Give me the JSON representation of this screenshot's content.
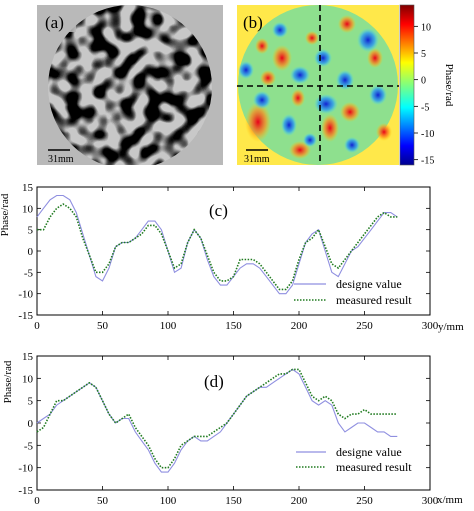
{
  "panels": {
    "a": {
      "label": "(a)",
      "scale_label": "31mm"
    },
    "b": {
      "label": "(b)",
      "scale_label": "31mm",
      "colorbar": {
        "title": "Phase/rad",
        "ticks": [
          10,
          5,
          0,
          -5,
          -10,
          -15
        ],
        "range": [
          -16,
          14
        ]
      }
    }
  },
  "chart_data": [
    {
      "panel": "(c)",
      "type": "line",
      "ylabel": "Phase/rad",
      "xlabel": "y/mm",
      "xlim": [
        0,
        300
      ],
      "ylim": [
        -15,
        15
      ],
      "xticks": [
        0,
        50,
        100,
        150,
        200,
        250,
        300
      ],
      "yticks": [
        15,
        10,
        5,
        0,
        -5,
        -10,
        -15
      ],
      "legend": "bottom-right",
      "series": [
        {
          "name": "designe value",
          "color": "#8f8fe0",
          "style": "solid",
          "x": [
            0,
            5,
            10,
            15,
            20,
            25,
            30,
            35,
            40,
            45,
            50,
            55,
            60,
            65,
            70,
            75,
            80,
            85,
            90,
            95,
            100,
            105,
            110,
            115,
            120,
            125,
            130,
            135,
            140,
            145,
            150,
            155,
            160,
            165,
            170,
            175,
            180,
            185,
            190,
            195,
            200,
            205,
            210,
            215,
            220,
            225,
            230,
            235,
            240,
            245,
            250,
            255,
            260,
            265,
            270,
            275
          ],
          "y": [
            8,
            10,
            12,
            13,
            13,
            12,
            9,
            4,
            -1,
            -6,
            -7,
            -4,
            1,
            2,
            2,
            3,
            5,
            7,
            7,
            5,
            0,
            -5,
            -4,
            2,
            5,
            3,
            -2,
            -6,
            -8,
            -8,
            -6,
            -4,
            -3,
            -3,
            -4,
            -6,
            -8,
            -10,
            -10,
            -8,
            -3,
            2,
            4,
            5,
            0,
            -5,
            -6,
            -3,
            0,
            1,
            3,
            5,
            7,
            9,
            9,
            8
          ]
        },
        {
          "name": "measured result",
          "color": "#1f7a1f",
          "style": "dotted",
          "x": [
            0,
            5,
            10,
            15,
            20,
            25,
            30,
            35,
            40,
            45,
            50,
            55,
            60,
            65,
            70,
            75,
            80,
            85,
            90,
            95,
            100,
            105,
            110,
            115,
            120,
            125,
            130,
            135,
            140,
            145,
            150,
            155,
            160,
            165,
            170,
            175,
            180,
            185,
            190,
            195,
            200,
            205,
            210,
            215,
            220,
            225,
            230,
            235,
            240,
            245,
            250,
            255,
            260,
            265,
            270,
            275
          ],
          "y": [
            5,
            5,
            8,
            10,
            11,
            10,
            8,
            3,
            -1,
            -5,
            -5,
            -3,
            1,
            2,
            2,
            3,
            4,
            6,
            6,
            4,
            0,
            -4,
            -3,
            2,
            5,
            3,
            -1,
            -5,
            -7,
            -7,
            -6,
            -2,
            -2,
            -2,
            -3,
            -5,
            -7,
            -9,
            -9,
            -7,
            -2,
            2,
            3,
            5,
            1,
            -3,
            -4,
            -2,
            0,
            2,
            4,
            6,
            8,
            9,
            8,
            8
          ]
        }
      ]
    },
    {
      "panel": "(d)",
      "type": "line",
      "ylabel": "Phase/rad",
      "xlabel": "x/mm",
      "xlim": [
        0,
        300
      ],
      "ylim": [
        -15,
        15
      ],
      "xticks": [
        0,
        50,
        100,
        150,
        200,
        250,
        300
      ],
      "yticks": [
        15,
        10,
        5,
        0,
        -5,
        -10,
        -15
      ],
      "legend": "bottom-right",
      "series": [
        {
          "name": "designe value",
          "color": "#8f8fe0",
          "style": "solid",
          "x": [
            0,
            5,
            10,
            15,
            20,
            25,
            30,
            35,
            40,
            45,
            50,
            55,
            60,
            65,
            70,
            75,
            80,
            85,
            90,
            95,
            100,
            105,
            110,
            115,
            120,
            125,
            130,
            135,
            140,
            145,
            150,
            155,
            160,
            165,
            170,
            175,
            180,
            185,
            190,
            195,
            200,
            205,
            210,
            215,
            220,
            225,
            230,
            235,
            240,
            245,
            250,
            255,
            260,
            265,
            270,
            275
          ],
          "y": [
            0,
            1,
            2,
            4,
            5,
            6,
            7,
            8,
            9,
            8,
            5,
            2,
            0,
            1,
            1,
            -2,
            -4,
            -6,
            -9,
            -11,
            -11,
            -9,
            -6,
            -4,
            -3,
            -4,
            -4,
            -3,
            -2,
            0,
            2,
            4,
            6,
            7,
            8,
            8,
            9,
            10,
            11,
            12,
            11,
            8,
            5,
            4,
            5,
            4,
            0,
            -2,
            -1,
            0,
            0,
            -1,
            -2,
            -2,
            -3,
            -3
          ]
        },
        {
          "name": "measured result",
          "color": "#1f7a1f",
          "style": "dotted",
          "x": [
            0,
            5,
            10,
            15,
            20,
            25,
            30,
            35,
            40,
            45,
            50,
            55,
            60,
            65,
            70,
            75,
            80,
            85,
            90,
            95,
            100,
            105,
            110,
            115,
            120,
            125,
            130,
            135,
            140,
            145,
            150,
            155,
            160,
            165,
            170,
            175,
            180,
            185,
            190,
            195,
            200,
            205,
            210,
            215,
            220,
            225,
            230,
            235,
            240,
            245,
            250,
            255,
            260,
            265,
            270,
            275
          ],
          "y": [
            -2,
            -1,
            2,
            5,
            5,
            6,
            7,
            8,
            9,
            8,
            5,
            2,
            0,
            1,
            2,
            -1,
            -3,
            -5,
            -8,
            -10,
            -10,
            -8,
            -5,
            -4,
            -3,
            -3,
            -3,
            -2,
            -1,
            0,
            2,
            4,
            6,
            7,
            8,
            9,
            10,
            11,
            11,
            12,
            12,
            9,
            6,
            5,
            6,
            5,
            2,
            1,
            2,
            2,
            3,
            2,
            2,
            2,
            2,
            2
          ]
        }
      ]
    }
  ]
}
